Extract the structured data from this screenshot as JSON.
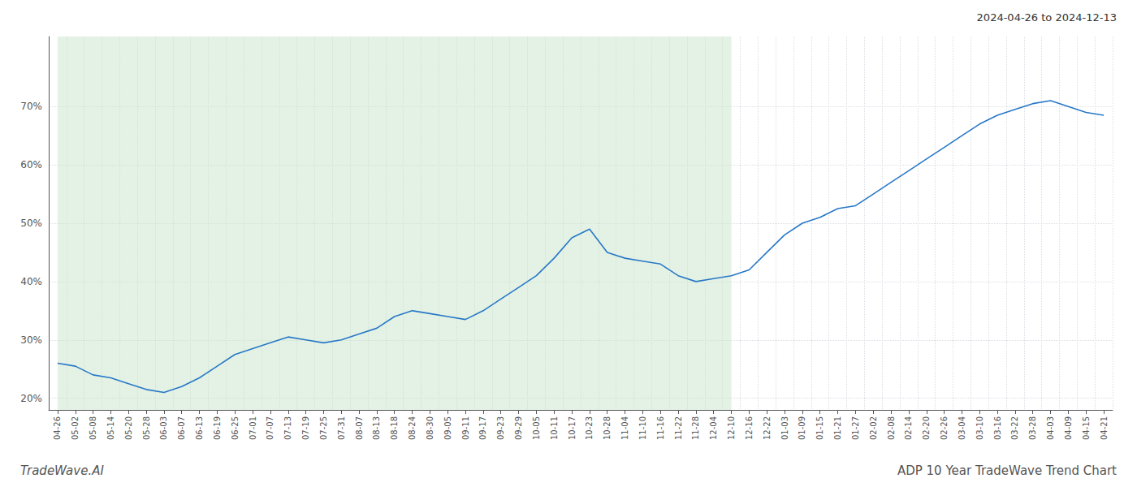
{
  "chart_data": {
    "type": "line",
    "title": "ADP 10 Year TradeWave Trend Chart",
    "subtitle": "2024-04-26 to 2024-12-13",
    "annotations": [
      "TradeWave.AI"
    ],
    "categories": [
      "04-26",
      "05-02",
      "05-08",
      "05-14",
      "05-20",
      "05-28",
      "06-03",
      "06-07",
      "06-13",
      "06-19",
      "06-25",
      "07-01",
      "07-07",
      "07-13",
      "07-19",
      "07-25",
      "07-31",
      "08-07",
      "08-13",
      "08-18",
      "08-24",
      "08-30",
      "09-05",
      "09-11",
      "09-17",
      "09-23",
      "09-29",
      "10-05",
      "10-11",
      "10-17",
      "10-23",
      "10-28",
      "11-04",
      "11-10",
      "11-16",
      "11-22",
      "11-28",
      "12-04",
      "12-10",
      "12-16",
      "12-22",
      "01-03",
      "01-09",
      "01-15",
      "01-21",
      "01-27",
      "02-02",
      "02-08",
      "02-14",
      "02-20",
      "02-26",
      "03-04",
      "03-10",
      "03-16",
      "03-22",
      "03-28",
      "04-03",
      "04-09",
      "04-15",
      "04-21"
    ],
    "values": [
      26.0,
      25.5,
      24.0,
      23.5,
      22.5,
      21.5,
      21.0,
      22.0,
      23.5,
      25.5,
      27.5,
      28.5,
      29.5,
      30.5,
      30.0,
      29.5,
      30.0,
      31.0,
      32.0,
      34.0,
      35.0,
      34.5,
      34.0,
      33.5,
      35.0,
      37.0,
      39.0,
      41.0,
      44.0,
      47.5,
      49.0,
      45.0,
      44.0,
      43.5,
      43.0,
      41.0,
      40.0,
      40.5,
      41.0,
      42.0,
      45.0,
      48.0,
      50.0,
      51.0,
      52.5,
      53.0,
      55.0,
      57.0,
      59.0,
      61.0,
      63.0,
      65.0,
      67.0,
      68.5,
      69.5,
      70.5,
      71.0,
      70.0,
      69.0,
      68.5
    ],
    "color": "#2878C8",
    "shaded": {
      "from": "04-26",
      "to": "12-10",
      "color": "#C8E6C9"
    },
    "ylim": [
      18,
      82
    ],
    "yticks": [
      {
        "value": 20,
        "label": "20%"
      },
      {
        "value": 30,
        "label": "30%"
      },
      {
        "value": 40,
        "label": "40%"
      },
      {
        "value": 50,
        "label": "50%"
      },
      {
        "value": 60,
        "label": "60%"
      },
      {
        "value": 70,
        "label": "70%"
      }
    ],
    "grid": true
  }
}
